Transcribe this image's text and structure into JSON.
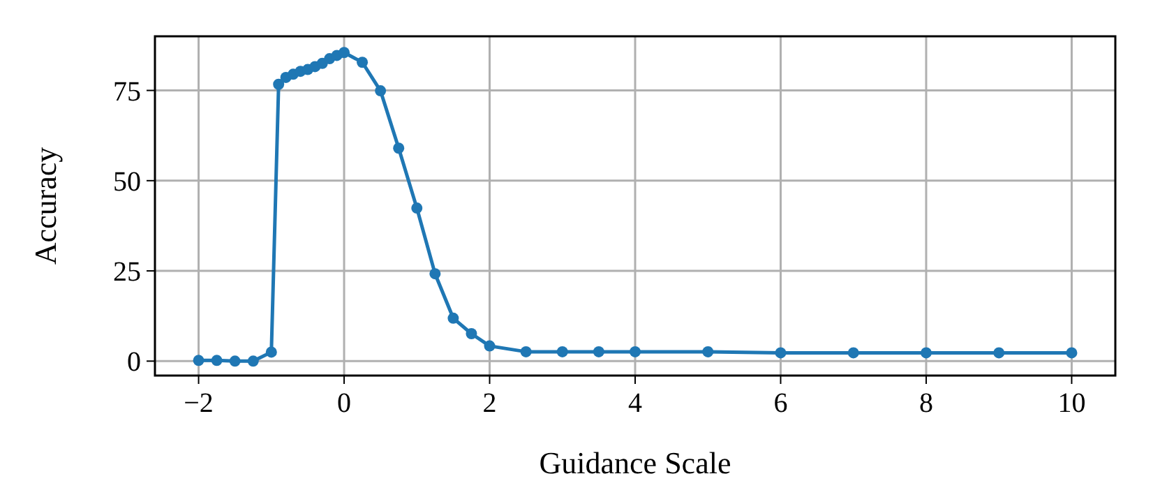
{
  "chart_data": {
    "type": "line",
    "xlabel": "Guidance Scale",
    "ylabel": "Accuracy",
    "xlim": [
      -2.6,
      10.6
    ],
    "ylim": [
      -4,
      90
    ],
    "xticks": [
      {
        "value": -2,
        "label": "−2"
      },
      0,
      2,
      4,
      6,
      8,
      10
    ],
    "yticks": [
      0,
      25,
      50,
      75
    ],
    "grid": true,
    "marker": "circle",
    "line_style": "solid",
    "series": [
      {
        "color": "#1f77b4",
        "x": [
          -2,
          -1.75,
          -1.5,
          -1.25,
          -1,
          -0.9,
          -0.8,
          -0.7,
          -0.6,
          -0.5,
          -0.4,
          -0.3,
          -0.2,
          -0.1,
          0,
          0.25,
          0.5,
          0.75,
          1,
          1.25,
          1.5,
          1.75,
          2,
          2.5,
          3,
          3.5,
          4,
          5,
          6,
          7,
          8,
          9,
          10
        ],
        "values": [
          0.2,
          0.2,
          0,
          0,
          2.5,
          76.7,
          78.6,
          79.5,
          80.3,
          80.8,
          81.6,
          82.5,
          83.8,
          84.7,
          85.5,
          82.8,
          74.9,
          59,
          42.4,
          24.2,
          11.9,
          7.6,
          4.2,
          2.6,
          2.6,
          2.6,
          2.6,
          2.6,
          2.3,
          2.3,
          2.3,
          2.3,
          2.3
        ]
      }
    ]
  }
}
